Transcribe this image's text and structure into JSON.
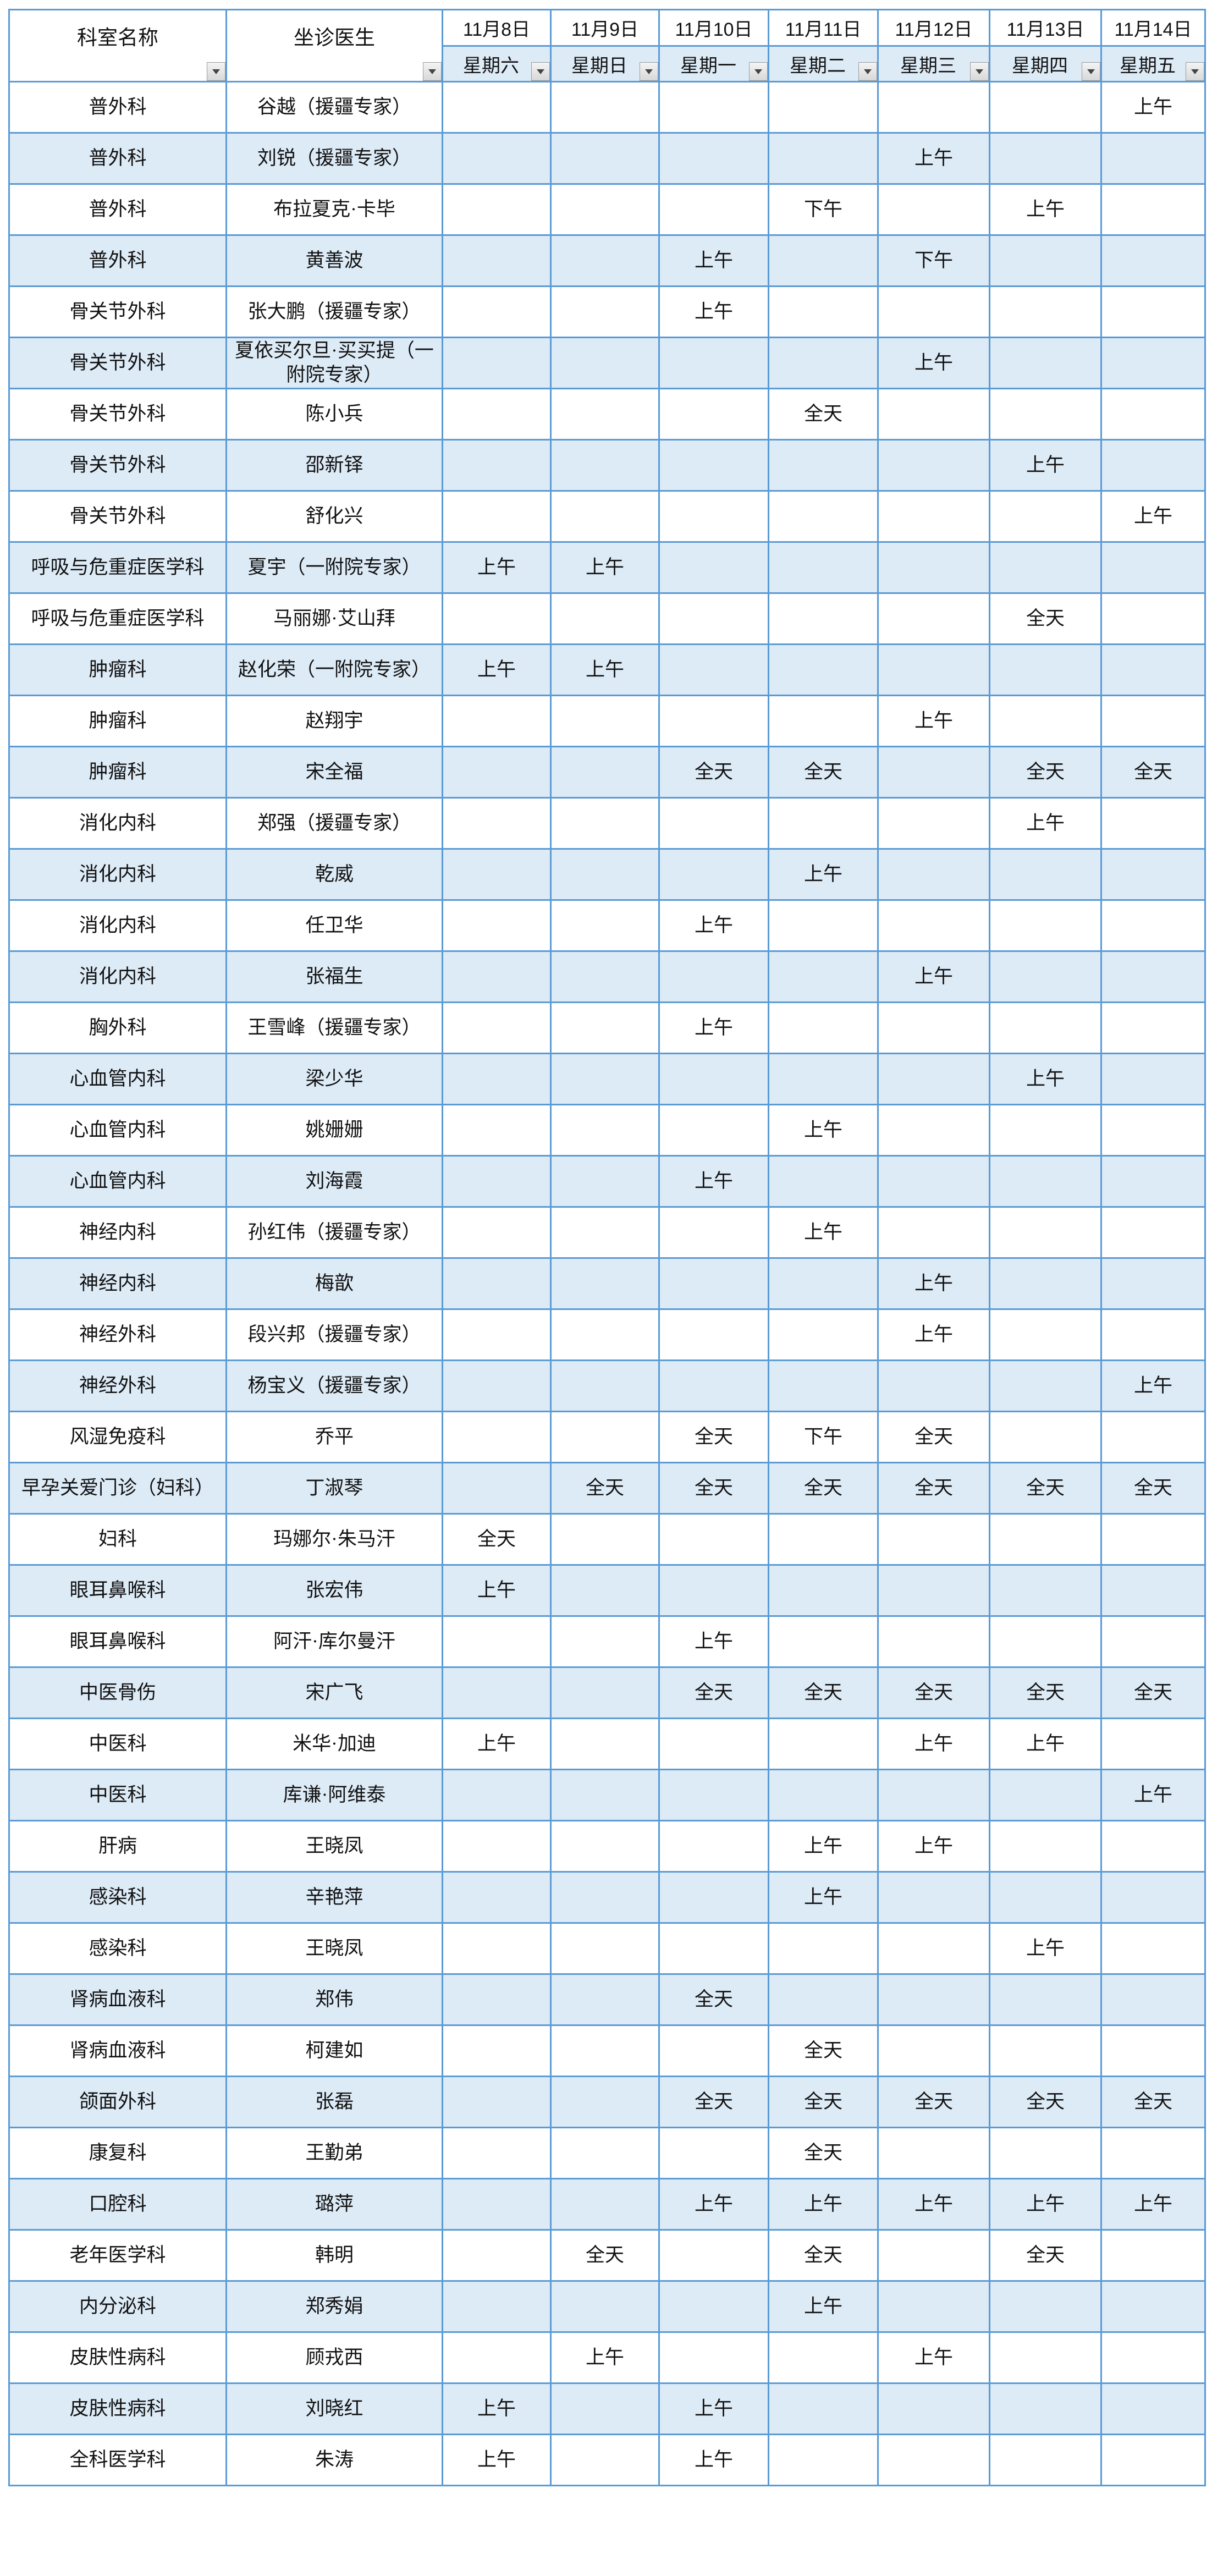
{
  "header": {
    "dept_label": "科室名称",
    "doctor_label": "坐诊医生",
    "dates": [
      "11月8日",
      "11月9日",
      "11月10日",
      "11月11日",
      "11月12日",
      "11月13日",
      "11月14日"
    ],
    "weekdays": [
      "星期六",
      "星期日",
      "星期一",
      "星期二",
      "星期三",
      "星期四",
      "星期五"
    ]
  },
  "colors": {
    "border": "#5b9bd5",
    "alt_row": "#ddebf7"
  },
  "rows": [
    {
      "dept": "普外科",
      "doctor": "谷越（援疆专家）",
      "slots": [
        "",
        "",
        "",
        "",
        "",
        "",
        "上午"
      ]
    },
    {
      "dept": "普外科",
      "doctor": "刘锐（援疆专家）",
      "slots": [
        "",
        "",
        "",
        "",
        "上午",
        "",
        ""
      ]
    },
    {
      "dept": "普外科",
      "doctor": "布拉夏克·卡毕",
      "slots": [
        "",
        "",
        "",
        "下午",
        "",
        "上午",
        ""
      ]
    },
    {
      "dept": "普外科",
      "doctor": "黄善波",
      "slots": [
        "",
        "",
        "上午",
        "",
        "下午",
        "",
        ""
      ]
    },
    {
      "dept": "骨关节外科",
      "doctor": "张大鹏（援疆专家）",
      "slots": [
        "",
        "",
        "上午",
        "",
        "",
        "",
        ""
      ]
    },
    {
      "dept": "骨关节外科",
      "doctor": "夏依买尔旦·买买提（一附院专家）",
      "slots": [
        "",
        "",
        "",
        "",
        "上午",
        "",
        ""
      ]
    },
    {
      "dept": "骨关节外科",
      "doctor": "陈小兵",
      "slots": [
        "",
        "",
        "",
        "全天",
        "",
        "",
        ""
      ]
    },
    {
      "dept": "骨关节外科",
      "doctor": "邵新铎",
      "slots": [
        "",
        "",
        "",
        "",
        "",
        "上午",
        ""
      ]
    },
    {
      "dept": "骨关节外科",
      "doctor": "舒化兴",
      "slots": [
        "",
        "",
        "",
        "",
        "",
        "",
        "上午"
      ]
    },
    {
      "dept": "呼吸与危重症医学科",
      "doctor": "夏宇（一附院专家）",
      "slots": [
        "上午",
        "上午",
        "",
        "",
        "",
        "",
        ""
      ]
    },
    {
      "dept": "呼吸与危重症医学科",
      "doctor": "马丽娜·艾山拜",
      "slots": [
        "",
        "",
        "",
        "",
        "",
        "全天",
        ""
      ]
    },
    {
      "dept": "肿瘤科",
      "doctor": "赵化荣（一附院专家）",
      "slots": [
        "上午",
        "上午",
        "",
        "",
        "",
        "",
        ""
      ]
    },
    {
      "dept": "肿瘤科",
      "doctor": "赵翔宇",
      "slots": [
        "",
        "",
        "",
        "",
        "上午",
        "",
        ""
      ]
    },
    {
      "dept": "肿瘤科",
      "doctor": "宋全福",
      "slots": [
        "",
        "",
        "全天",
        "全天",
        "",
        "全天",
        "全天"
      ]
    },
    {
      "dept": "消化内科",
      "doctor": "郑强（援疆专家）",
      "slots": [
        "",
        "",
        "",
        "",
        "",
        "上午",
        ""
      ]
    },
    {
      "dept": "消化内科",
      "doctor": "乾威",
      "slots": [
        "",
        "",
        "",
        "上午",
        "",
        "",
        ""
      ]
    },
    {
      "dept": "消化内科",
      "doctor": "任卫华",
      "slots": [
        "",
        "",
        "上午",
        "",
        "",
        "",
        ""
      ]
    },
    {
      "dept": "消化内科",
      "doctor": "张福生",
      "slots": [
        "",
        "",
        "",
        "",
        "上午",
        "",
        ""
      ]
    },
    {
      "dept": "胸外科",
      "doctor": "王雪峰（援疆专家）",
      "slots": [
        "",
        "",
        "上午",
        "",
        "",
        "",
        ""
      ]
    },
    {
      "dept": "心血管内科",
      "doctor": "梁少华",
      "slots": [
        "",
        "",
        "",
        "",
        "",
        "上午",
        ""
      ]
    },
    {
      "dept": "心血管内科",
      "doctor": "姚姗姗",
      "slots": [
        "",
        "",
        "",
        "上午",
        "",
        "",
        ""
      ]
    },
    {
      "dept": "心血管内科",
      "doctor": "刘海霞",
      "slots": [
        "",
        "",
        "上午",
        "",
        "",
        "",
        ""
      ]
    },
    {
      "dept": "神经内科",
      "doctor": "孙红伟（援疆专家）",
      "slots": [
        "",
        "",
        "",
        "上午",
        "",
        "",
        ""
      ]
    },
    {
      "dept": "神经内科",
      "doctor": "梅歆",
      "slots": [
        "",
        "",
        "",
        "",
        "上午",
        "",
        ""
      ]
    },
    {
      "dept": "神经外科",
      "doctor": "段兴邦（援疆专家）",
      "slots": [
        "",
        "",
        "",
        "",
        "上午",
        "",
        ""
      ]
    },
    {
      "dept": "神经外科",
      "doctor": "杨宝义（援疆专家）",
      "slots": [
        "",
        "",
        "",
        "",
        "",
        "",
        "上午"
      ]
    },
    {
      "dept": "风湿免疫科",
      "doctor": "乔平",
      "slots": [
        "",
        "",
        "全天",
        "下午",
        "全天",
        "",
        ""
      ]
    },
    {
      "dept": "早孕关爱门诊（妇科）",
      "doctor": "丁淑琴",
      "slots": [
        "",
        "全天",
        "全天",
        "全天",
        "全天",
        "全天",
        "全天"
      ]
    },
    {
      "dept": "妇科",
      "doctor": "玛娜尔·朱马汗",
      "slots": [
        "全天",
        "",
        "",
        "",
        "",
        "",
        ""
      ]
    },
    {
      "dept": "眼耳鼻喉科",
      "doctor": "张宏伟",
      "slots": [
        "上午",
        "",
        "",
        "",
        "",
        "",
        ""
      ]
    },
    {
      "dept": "眼耳鼻喉科",
      "doctor": "阿汗·库尔曼汗",
      "slots": [
        "",
        "",
        "上午",
        "",
        "",
        "",
        ""
      ]
    },
    {
      "dept": "中医骨伤",
      "doctor": "宋广飞",
      "slots": [
        "",
        "",
        "全天",
        "全天",
        "全天",
        "全天",
        "全天"
      ]
    },
    {
      "dept": "中医科",
      "doctor": "米华·加迪",
      "slots": [
        "上午",
        "",
        "",
        "",
        "上午",
        "上午",
        ""
      ]
    },
    {
      "dept": "中医科",
      "doctor": "库谦·阿维泰",
      "slots": [
        "",
        "",
        "",
        "",
        "",
        "",
        "上午"
      ]
    },
    {
      "dept": "肝病",
      "doctor": "王晓凤",
      "slots": [
        "",
        "",
        "",
        "上午",
        "上午",
        "",
        ""
      ]
    },
    {
      "dept": "感染科",
      "doctor": "辛艳萍",
      "slots": [
        "",
        "",
        "",
        "上午",
        "",
        "",
        ""
      ]
    },
    {
      "dept": "感染科",
      "doctor": "王晓凤",
      "slots": [
        "",
        "",
        "",
        "",
        "",
        "上午",
        ""
      ]
    },
    {
      "dept": "肾病血液科",
      "doctor": "郑伟",
      "slots": [
        "",
        "",
        "全天",
        "",
        "",
        "",
        ""
      ]
    },
    {
      "dept": "肾病血液科",
      "doctor": "柯建如",
      "slots": [
        "",
        "",
        "",
        "全天",
        "",
        "",
        ""
      ]
    },
    {
      "dept": "颌面外科",
      "doctor": "张磊",
      "slots": [
        "",
        "",
        "全天",
        "全天",
        "全天",
        "全天",
        "全天"
      ]
    },
    {
      "dept": "康复科",
      "doctor": "王勤弟",
      "slots": [
        "",
        "",
        "",
        "全天",
        "",
        "",
        ""
      ]
    },
    {
      "dept": "口腔科",
      "doctor": "璐萍",
      "slots": [
        "",
        "",
        "上午",
        "上午",
        "上午",
        "上午",
        "上午"
      ]
    },
    {
      "dept": "老年医学科",
      "doctor": "韩明",
      "slots": [
        "",
        "全天",
        "",
        "全天",
        "",
        "全天",
        ""
      ]
    },
    {
      "dept": "内分泌科",
      "doctor": "郑秀娟",
      "slots": [
        "",
        "",
        "",
        "上午",
        "",
        "",
        ""
      ]
    },
    {
      "dept": "皮肤性病科",
      "doctor": "顾戎西",
      "slots": [
        "",
        "上午",
        "",
        "",
        "上午",
        "",
        ""
      ]
    },
    {
      "dept": "皮肤性病科",
      "doctor": "刘晓红",
      "slots": [
        "上午",
        "",
        "上午",
        "",
        "",
        "",
        ""
      ]
    },
    {
      "dept": "全科医学科",
      "doctor": "朱涛",
      "slots": [
        "上午",
        "",
        "上午",
        "",
        "",
        "",
        ""
      ]
    }
  ]
}
